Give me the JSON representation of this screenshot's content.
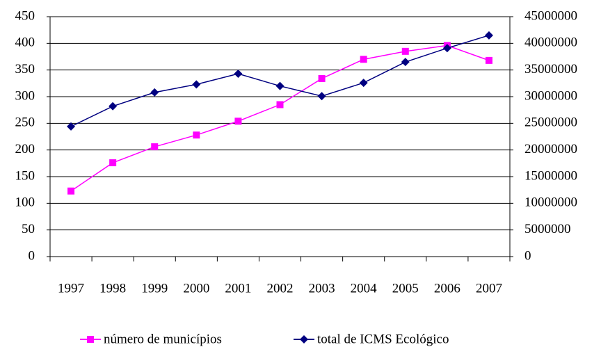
{
  "chart_data": {
    "type": "line",
    "categories": [
      "1997",
      "1998",
      "1999",
      "2000",
      "2001",
      "2002",
      "2003",
      "2004",
      "2005",
      "2006",
      "2007"
    ],
    "series": [
      {
        "name": "número de municípios",
        "color": "#ff00ff",
        "marker": "square",
        "values": [
          123,
          176,
          206,
          228,
          254,
          285,
          334,
          370,
          385,
          396,
          368
        ]
      },
      {
        "name": "total de ICMS Ecológico",
        "color": "#000080",
        "marker": "diamond",
        "axis": "y2",
        "values": [
          24400000,
          28200000,
          30800000,
          32300000,
          34300000,
          32000000,
          30100000,
          32600000,
          36500000,
          39100000,
          41500000
        ]
      }
    ],
    "ylim": [
      0,
      450
    ],
    "yticks": [
      0,
      50,
      100,
      150,
      200,
      250,
      300,
      350,
      400,
      450
    ],
    "y2lim": [
      0,
      45000000
    ],
    "y2ticks": [
      0,
      5000000,
      10000000,
      15000000,
      20000000,
      25000000,
      30000000,
      35000000,
      40000000,
      45000000
    ],
    "grid": true,
    "legend": "bottom"
  }
}
